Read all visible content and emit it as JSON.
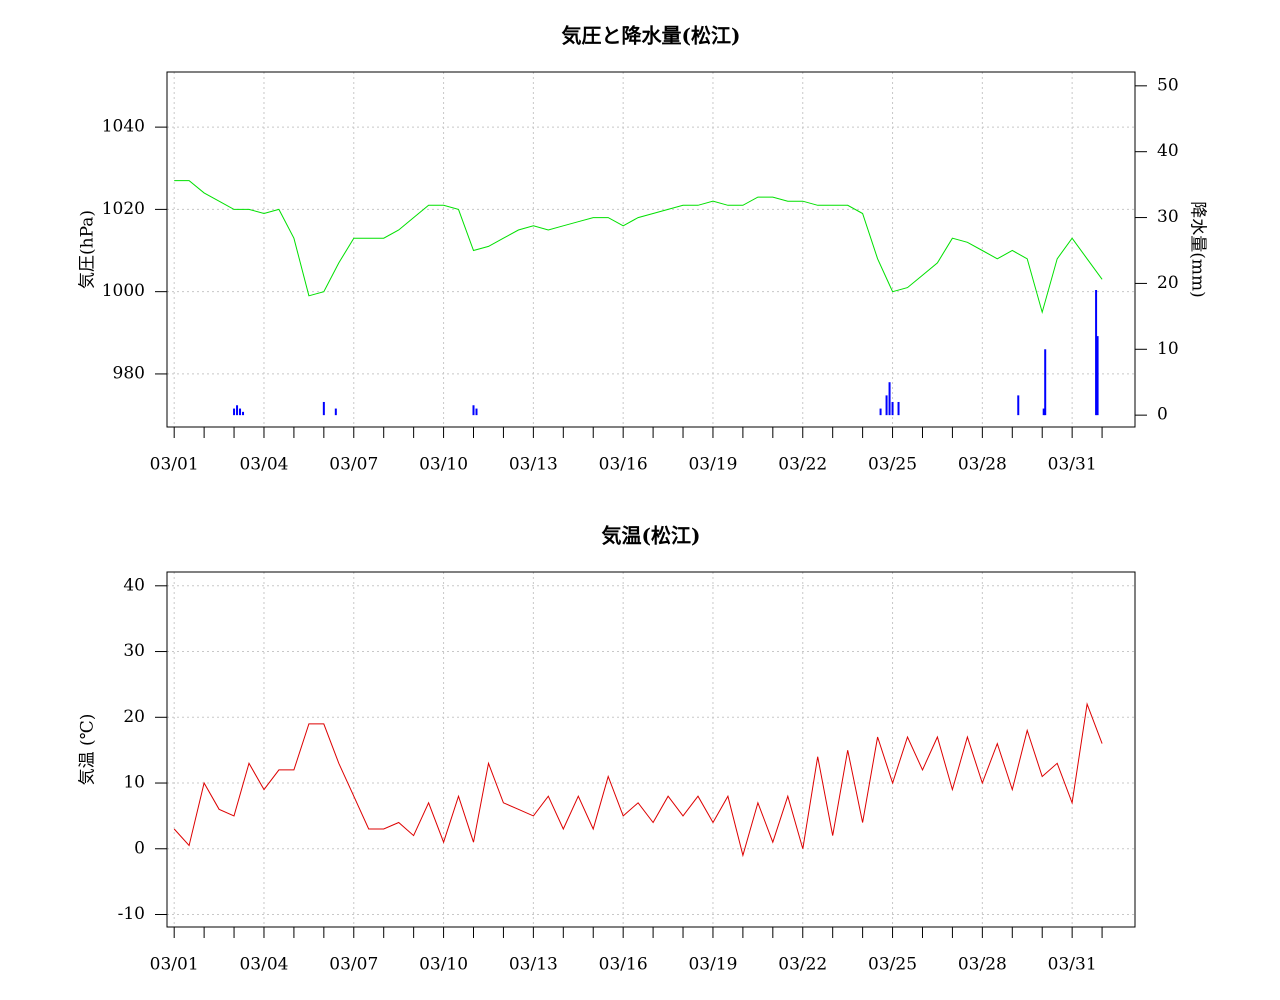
{
  "chart_data": [
    {
      "type": "line",
      "title": "気圧と降水量(松江)",
      "ylabel": "気圧(hPa)",
      "y2label": "降水量(mm)",
      "xlim": [
        0.76,
        33.1
      ],
      "xticks": [
        {
          "value": 1,
          "label": "03/01"
        },
        {
          "value": 2,
          "label": null
        },
        {
          "value": 3,
          "label": null
        },
        {
          "value": 4,
          "label": "03/04"
        },
        {
          "value": 5,
          "label": null
        },
        {
          "value": 6,
          "label": null
        },
        {
          "value": 7,
          "label": "03/07"
        },
        {
          "value": 8,
          "label": null
        },
        {
          "value": 9,
          "label": null
        },
        {
          "value": 10,
          "label": "03/10"
        },
        {
          "value": 11,
          "label": null
        },
        {
          "value": 12,
          "label": null
        },
        {
          "value": 13,
          "label": "03/13"
        },
        {
          "value": 14,
          "label": null
        },
        {
          "value": 15,
          "label": null
        },
        {
          "value": 16,
          "label": "03/16"
        },
        {
          "value": 17,
          "label": null
        },
        {
          "value": 18,
          "label": null
        },
        {
          "value": 19,
          "label": "03/19"
        },
        {
          "value": 20,
          "label": null
        },
        {
          "value": 21,
          "label": null
        },
        {
          "value": 22,
          "label": "03/22"
        },
        {
          "value": 23,
          "label": null
        },
        {
          "value": 24,
          "label": null
        },
        {
          "value": 25,
          "label": "03/25"
        },
        {
          "value": 26,
          "label": null
        },
        {
          "value": 27,
          "label": null
        },
        {
          "value": 28,
          "label": "03/28"
        },
        {
          "value": 29,
          "label": null
        },
        {
          "value": 30,
          "label": null
        },
        {
          "value": 31,
          "label": "03/31"
        },
        {
          "value": 32,
          "label": null
        }
      ],
      "ylim": [
        967.1,
        1053.4
      ],
      "yticks": [
        980,
        1000,
        1020,
        1040
      ],
      "y2lim": [
        -1.8,
        52.1
      ],
      "y2ticks": [
        0,
        10,
        20,
        30,
        40,
        50
      ],
      "grid": true,
      "series": [
        {
          "type": "line",
          "color": "#00e000",
          "x": [
            1,
            1.5,
            2,
            2.5,
            3,
            3.5,
            4,
            4.5,
            5,
            5.5,
            6,
            6.5,
            7,
            7.5,
            8,
            8.5,
            9,
            9.5,
            10,
            10.5,
            11,
            11.5,
            12,
            12.5,
            13,
            13.5,
            14,
            14.5,
            15,
            15.5,
            16,
            16.5,
            17,
            17.5,
            18,
            18.5,
            19,
            19.5,
            20,
            20.5,
            21,
            21.5,
            22,
            22.5,
            23,
            23.5,
            24,
            24.5,
            25,
            25.5,
            26,
            26.5,
            27,
            27.5,
            28,
            28.5,
            29,
            29.5,
            30,
            30.5,
            31,
            31.5,
            32
          ],
          "values": [
            1027,
            1027,
            1024,
            1022,
            1020,
            1020,
            1019,
            1020,
            1013,
            999,
            1000,
            1007,
            1013,
            1013,
            1013,
            1015,
            1018,
            1021,
            1021,
            1020,
            1010,
            1011,
            1013,
            1015,
            1016,
            1015,
            1016,
            1017,
            1018,
            1018,
            1016,
            1018,
            1019,
            1020,
            1021,
            1021,
            1022,
            1021,
            1021,
            1023,
            1023,
            1022,
            1022,
            1021,
            1021,
            1021,
            1019,
            1008,
            1000,
            1001,
            1004,
            1007,
            1013,
            1012,
            1010,
            1008,
            1010,
            1008,
            995,
            1008,
            1013,
            1008,
            1003
          ]
        },
        {
          "type": "bar",
          "axis": "y2",
          "color": "#0000ff",
          "x": [
            3.0,
            3.1,
            3.2,
            3.3,
            6.0,
            6.4,
            11.0,
            11.1,
            24.6,
            24.8,
            24.9,
            25.0,
            25.2,
            29.2,
            30.05,
            30.1,
            31.8,
            31.85
          ],
          "values": [
            1,
            1.5,
            1,
            0.5,
            2,
            1,
            1.5,
            1,
            1,
            3,
            5,
            2,
            2,
            3,
            1,
            10,
            19,
            12
          ]
        }
      ]
    },
    {
      "type": "line",
      "title": "気温(松江)",
      "ylabel": "気温 (℃)",
      "xlim": [
        0.76,
        33.1
      ],
      "xticks": [
        {
          "value": 1,
          "label": "03/01"
        },
        {
          "value": 2,
          "label": null
        },
        {
          "value": 3,
          "label": null
        },
        {
          "value": 4,
          "label": "03/04"
        },
        {
          "value": 5,
          "label": null
        },
        {
          "value": 6,
          "label": null
        },
        {
          "value": 7,
          "label": "03/07"
        },
        {
          "value": 8,
          "label": null
        },
        {
          "value": 9,
          "label": null
        },
        {
          "value": 10,
          "label": "03/10"
        },
        {
          "value": 11,
          "label": null
        },
        {
          "value": 12,
          "label": null
        },
        {
          "value": 13,
          "label": "03/13"
        },
        {
          "value": 14,
          "label": null
        },
        {
          "value": 15,
          "label": null
        },
        {
          "value": 16,
          "label": "03/16"
        },
        {
          "value": 17,
          "label": null
        },
        {
          "value": 18,
          "label": null
        },
        {
          "value": 19,
          "label": "03/19"
        },
        {
          "value": 20,
          "label": null
        },
        {
          "value": 21,
          "label": null
        },
        {
          "value": 22,
          "label": "03/22"
        },
        {
          "value": 23,
          "label": null
        },
        {
          "value": 24,
          "label": null
        },
        {
          "value": 25,
          "label": "03/25"
        },
        {
          "value": 26,
          "label": null
        },
        {
          "value": 27,
          "label": null
        },
        {
          "value": 28,
          "label": "03/28"
        },
        {
          "value": 29,
          "label": null
        },
        {
          "value": 30,
          "label": null
        },
        {
          "value": 31,
          "label": "03/31"
        },
        {
          "value": 32,
          "label": null
        }
      ],
      "ylim": [
        -11.9,
        42.1
      ],
      "yticks": [
        -10,
        0,
        10,
        20,
        30,
        40
      ],
      "grid": true,
      "series": [
        {
          "type": "line",
          "color": "#dd0000",
          "x": [
            1,
            1.5,
            2,
            2.5,
            3,
            3.5,
            4,
            4.5,
            5,
            5.5,
            6,
            6.5,
            7,
            7.5,
            8,
            8.5,
            9,
            9.5,
            10,
            10.5,
            11,
            11.5,
            12,
            12.5,
            13,
            13.5,
            14,
            14.5,
            15,
            15.5,
            16,
            16.5,
            17,
            17.5,
            18,
            18.5,
            19,
            19.5,
            20,
            20.5,
            21,
            21.5,
            22,
            22.5,
            23,
            23.5,
            24,
            24.5,
            25,
            25.5,
            26,
            26.5,
            27,
            27.5,
            28,
            28.5,
            29,
            29.5,
            30,
            30.5,
            31,
            31.5,
            32
          ],
          "values": [
            3,
            0.5,
            10,
            6,
            5,
            13,
            9,
            12,
            12,
            19,
            19,
            13,
            8,
            3,
            3,
            4,
            2,
            7,
            1,
            8,
            1,
            13,
            7,
            6,
            5,
            8,
            3,
            8,
            3,
            11,
            5,
            7,
            4,
            8,
            5,
            8,
            4,
            8,
            -1,
            7,
            1,
            8,
            0,
            14,
            2,
            15,
            4,
            17,
            10,
            17,
            12,
            17,
            9,
            17,
            10,
            16,
            9,
            18,
            11,
            13,
            7,
            22,
            16
          ]
        }
      ]
    }
  ]
}
